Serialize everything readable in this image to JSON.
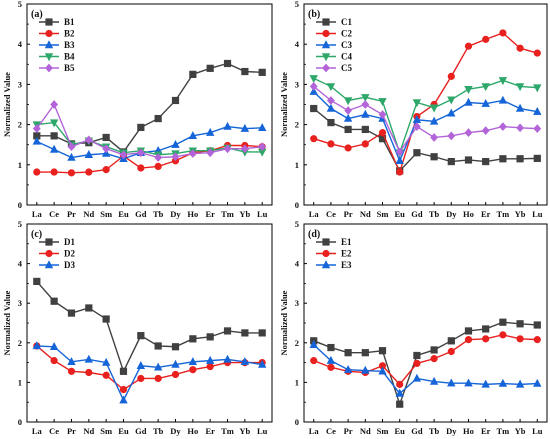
{
  "chart_data": [
    {
      "type": "line",
      "panel_label": "(a)",
      "ylabel": "Normalized Value",
      "ylim": [
        0,
        5
      ],
      "yticks": [
        "0",
        "1",
        "2",
        "3",
        "4",
        "5"
      ],
      "categories": [
        "La",
        "Ce",
        "Pr",
        "Nd",
        "Sm",
        "Eu",
        "Gd",
        "Tb",
        "Dy",
        "Ho",
        "Er",
        "Tm",
        "Yb",
        "Lu"
      ],
      "legend_position": "top-left",
      "series": [
        {
          "name": "B1",
          "color": "#404040",
          "marker": "square",
          "values": [
            1.72,
            1.72,
            1.52,
            1.55,
            1.68,
            1.32,
            1.93,
            2.15,
            2.6,
            3.25,
            3.4,
            3.52,
            3.32,
            3.3
          ]
        },
        {
          "name": "B2",
          "color": "#e8211f",
          "marker": "circle",
          "values": [
            0.82,
            0.82,
            0.8,
            0.82,
            0.88,
            1.22,
            0.92,
            0.96,
            1.1,
            1.3,
            1.35,
            1.48,
            1.48,
            1.45
          ]
        },
        {
          "name": "B3",
          "color": "#1565d8",
          "marker": "triangle-up",
          "values": [
            1.58,
            1.38,
            1.18,
            1.25,
            1.28,
            1.15,
            1.3,
            1.35,
            1.5,
            1.72,
            1.8,
            1.95,
            1.9,
            1.92
          ]
        },
        {
          "name": "B4",
          "color": "#2ea86a",
          "marker": "triangle-down",
          "values": [
            2.0,
            2.05,
            1.5,
            1.6,
            1.45,
            1.3,
            1.35,
            1.25,
            1.28,
            1.35,
            1.35,
            1.42,
            1.32,
            1.32
          ]
        },
        {
          "name": "B5",
          "color": "#b264d8",
          "marker": "diamond",
          "values": [
            1.9,
            2.5,
            1.45,
            1.62,
            1.4,
            1.25,
            1.3,
            1.18,
            1.2,
            1.28,
            1.3,
            1.4,
            1.4,
            1.45
          ]
        }
      ]
    },
    {
      "type": "line",
      "panel_label": "(b)",
      "ylabel": "Normalized Value",
      "ylim": [
        0,
        5
      ],
      "yticks": [
        "0",
        "1",
        "2",
        "3",
        "4",
        "5"
      ],
      "categories": [
        "La",
        "Ce",
        "Pr",
        "Nd",
        "Sm",
        "Eu",
        "Gd",
        "Tb",
        "Dy",
        "Ho",
        "Er",
        "Tm",
        "Yb",
        "Lu"
      ],
      "legend_position": "top-left",
      "series": [
        {
          "name": "C1",
          "color": "#404040",
          "marker": "square",
          "values": [
            2.4,
            2.05,
            1.88,
            1.88,
            1.65,
            0.85,
            1.3,
            1.2,
            1.08,
            1.12,
            1.08,
            1.15,
            1.15,
            1.16
          ]
        },
        {
          "name": "C2",
          "color": "#e8211f",
          "marker": "circle",
          "values": [
            1.65,
            1.52,
            1.42,
            1.52,
            1.8,
            0.82,
            2.2,
            2.5,
            3.2,
            3.95,
            4.12,
            4.28,
            3.9,
            3.78
          ]
        },
        {
          "name": "C3",
          "color": "#1565d8",
          "marker": "triangle-up",
          "values": [
            2.82,
            2.4,
            2.15,
            2.25,
            2.15,
            1.1,
            2.12,
            2.08,
            2.28,
            2.55,
            2.52,
            2.6,
            2.4,
            2.32
          ]
        },
        {
          "name": "C4",
          "color": "#2ea86a",
          "marker": "triangle-down",
          "values": [
            3.15,
            2.95,
            2.6,
            2.68,
            2.58,
            1.3,
            2.55,
            2.42,
            2.62,
            2.88,
            2.95,
            3.1,
            2.95,
            2.92
          ]
        },
        {
          "name": "C5",
          "color": "#b264d8",
          "marker": "diamond",
          "values": [
            2.95,
            2.6,
            2.35,
            2.5,
            2.25,
            1.32,
            1.95,
            1.68,
            1.72,
            1.8,
            1.85,
            1.95,
            1.92,
            1.9
          ]
        }
      ]
    },
    {
      "type": "line",
      "panel_label": "(c)",
      "ylabel": "Normalized Value",
      "ylim": [
        0,
        5
      ],
      "yticks": [
        "0",
        "1",
        "2",
        "3",
        "4",
        "5"
      ],
      "categories": [
        "La",
        "Ce",
        "Pr",
        "Nd",
        "Sm",
        "Eu",
        "Gd",
        "Tb",
        "Dy",
        "Ho",
        "Er",
        "Tm",
        "Yb",
        "Lu"
      ],
      "legend_position": "top-left",
      "series": [
        {
          "name": "D1",
          "color": "#404040",
          "marker": "square",
          "values": [
            3.55,
            3.05,
            2.75,
            2.88,
            2.6,
            1.28,
            2.18,
            1.92,
            1.9,
            2.1,
            2.15,
            2.3,
            2.25,
            2.25
          ]
        },
        {
          "name": "D2",
          "color": "#e8211f",
          "marker": "circle",
          "values": [
            1.92,
            1.55,
            1.28,
            1.25,
            1.18,
            0.82,
            1.1,
            1.1,
            1.2,
            1.32,
            1.4,
            1.5,
            1.5,
            1.5
          ]
        },
        {
          "name": "D3",
          "color": "#1565d8",
          "marker": "triangle-up",
          "values": [
            1.92,
            1.9,
            1.52,
            1.58,
            1.5,
            0.55,
            1.42,
            1.38,
            1.45,
            1.52,
            1.55,
            1.58,
            1.52,
            1.45
          ]
        }
      ]
    },
    {
      "type": "line",
      "panel_label": "(d)",
      "ylabel": "Normalized Value",
      "ylim": [
        0,
        5
      ],
      "yticks": [
        "0",
        "1",
        "2",
        "3",
        "4",
        "5"
      ],
      "categories": [
        "La",
        "Ce",
        "Pr",
        "Nd",
        "Sm",
        "Eu",
        "Gd",
        "Tb",
        "Dy",
        "Ho",
        "Er",
        "Tm",
        "Yb",
        "Lu"
      ],
      "legend_position": "top-left",
      "series": [
        {
          "name": "E1",
          "color": "#404040",
          "marker": "square",
          "values": [
            2.05,
            1.88,
            1.75,
            1.75,
            1.8,
            0.45,
            1.68,
            1.82,
            2.05,
            2.3,
            2.35,
            2.52,
            2.48,
            2.45
          ]
        },
        {
          "name": "E2",
          "color": "#e8211f",
          "marker": "circle",
          "values": [
            1.55,
            1.38,
            1.28,
            1.25,
            1.42,
            0.95,
            1.48,
            1.6,
            1.78,
            2.08,
            2.1,
            2.2,
            2.1,
            2.08
          ]
        },
        {
          "name": "E3",
          "color": "#1565d8",
          "marker": "triangle-up",
          "values": [
            1.95,
            1.55,
            1.32,
            1.3,
            1.28,
            0.72,
            1.1,
            1.02,
            0.98,
            0.98,
            0.95,
            0.97,
            0.95,
            0.97
          ]
        }
      ]
    }
  ]
}
